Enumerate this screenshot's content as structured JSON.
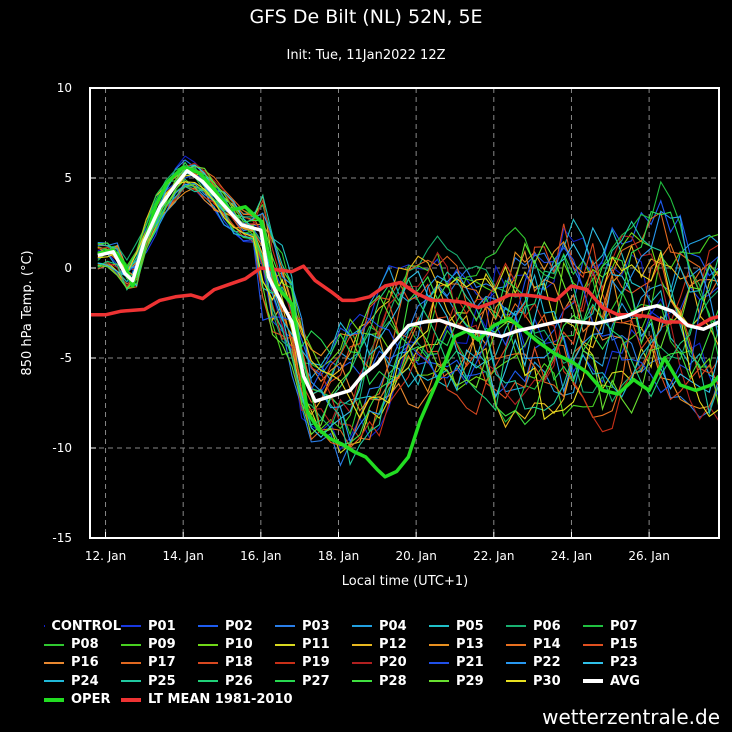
{
  "header": {
    "title": "GFS De Bilt (NL) 52N, 5E",
    "subtitle": "Init: Tue, 11Jan2022 12Z"
  },
  "watermark": "wetterzentrale.de",
  "chart_data": {
    "type": "line",
    "title": "GFS De Bilt (NL) 52N, 5E",
    "xlabel": "Local time (UTC+1)",
    "ylabel": "850 hPa Temp. (°C)",
    "xlim": [
      11.6,
      27.8
    ],
    "ylim": [
      -15,
      10
    ],
    "x_ticks": [
      {
        "v": 12,
        "label": "12. Jan"
      },
      {
        "v": 14,
        "label": "14. Jan"
      },
      {
        "v": 16,
        "label": "16. Jan"
      },
      {
        "v": 18,
        "label": "18. Jan"
      },
      {
        "v": 20,
        "label": "20. Jan"
      },
      {
        "v": 22,
        "label": "22. Jan"
      },
      {
        "v": 24,
        "label": "24. Jan"
      },
      {
        "v": 26,
        "label": "26. Jan"
      }
    ],
    "y_ticks": [
      -15,
      -10,
      -5,
      0,
      5,
      10
    ],
    "grid": true,
    "oper": {
      "name": "OPER",
      "color": "#22dd22",
      "x": [
        11.8,
        12.2,
        12.5,
        12.7,
        13,
        13.3,
        13.6,
        14,
        14.4,
        14.8,
        15.2,
        15.6,
        16,
        16.4,
        16.8,
        17.2,
        17.5,
        17.8,
        18.1,
        18.4,
        18.7,
        19,
        19.2,
        19.5,
        19.8,
        20.1,
        20.4,
        20.7,
        21,
        21.3,
        21.6,
        22,
        22.4,
        22.8,
        23.2,
        23.6,
        24,
        24.4,
        24.8,
        25.2,
        25.6,
        26,
        26.4,
        26.8,
        27.2,
        27.6,
        27.8
      ],
      "y": [
        0.8,
        1,
        0.2,
        -1,
        1.5,
        3.5,
        4.8,
        5.6,
        5.3,
        4.4,
        3.2,
        3.4,
        2.6,
        -1,
        -2,
        -8,
        -9,
        -9.5,
        -9.8,
        -10.2,
        -10.5,
        -11.2,
        -11.6,
        -11.3,
        -10.5,
        -8.5,
        -7,
        -5.5,
        -3.8,
        -3.5,
        -4,
        -3.2,
        -2.8,
        -3.5,
        -4.2,
        -4.8,
        -5.2,
        -5.8,
        -6.8,
        -7,
        -6.2,
        -6.8,
        -5,
        -6.5,
        -6.8,
        -6.5,
        -6
      ]
    },
    "avg": {
      "name": "AVG",
      "color": "#ffffff",
      "x": [
        11.8,
        12.2,
        12.5,
        12.7,
        13,
        13.4,
        13.8,
        14.1,
        14.5,
        15,
        15.5,
        16,
        16.2,
        16.5,
        16.8,
        17.1,
        17.4,
        17.7,
        18,
        18.3,
        18.6,
        19,
        19.4,
        19.8,
        20.2,
        20.6,
        21,
        21.4,
        21.8,
        22.2,
        22.6,
        23,
        23.4,
        23.8,
        24.2,
        24.6,
        25,
        25.4,
        25.8,
        26.2,
        26.6,
        27,
        27.4,
        27.8
      ],
      "y": [
        0.7,
        0.9,
        -0.3,
        -0.7,
        1.5,
        3.4,
        4.6,
        5.4,
        4.8,
        3.6,
        2.4,
        2.1,
        -0.5,
        -1.8,
        -3,
        -6,
        -7.4,
        -7.2,
        -7,
        -6.8,
        -6,
        -5.3,
        -4.2,
        -3.2,
        -3,
        -2.9,
        -3.2,
        -3.5,
        -3.6,
        -3.8,
        -3.5,
        -3.3,
        -3.1,
        -2.9,
        -3,
        -3.1,
        -2.9,
        -2.7,
        -2.3,
        -2.1,
        -2.4,
        -3.2,
        -3.4,
        -3
      ]
    },
    "lt_mean": {
      "name": "LT MEAN 1981-2010",
      "color": "#ee3333",
      "x": [
        11.6,
        12,
        12.4,
        13,
        13.4,
        13.8,
        14.2,
        14.5,
        14.8,
        15.2,
        15.6,
        16,
        16.4,
        16.8,
        17.1,
        17.4,
        17.8,
        18.1,
        18.4,
        18.8,
        19.2,
        19.6,
        20,
        20.4,
        20.8,
        21.2,
        21.6,
        22,
        22.4,
        22.8,
        23.2,
        23.6,
        24,
        24.4,
        24.8,
        25.2,
        25.6,
        26,
        26.4,
        26.8,
        27.2,
        27.6,
        27.8
      ],
      "y": [
        -2.6,
        -2.6,
        -2.4,
        -2.3,
        -1.8,
        -1.6,
        -1.5,
        -1.7,
        -1.2,
        -0.9,
        -0.6,
        0,
        -0.1,
        -0.2,
        0.1,
        -0.7,
        -1.3,
        -1.8,
        -1.8,
        -1.6,
        -1,
        -0.8,
        -1.4,
        -1.8,
        -1.8,
        -1.9,
        -2.2,
        -1.9,
        -1.5,
        -1.5,
        -1.6,
        -1.8,
        -1,
        -1.2,
        -2.2,
        -2.6,
        -2.6,
        -2.7,
        -3,
        -3,
        -3.3,
        -2.8,
        -2.7
      ]
    },
    "members": [
      {
        "name": "CONTROL",
        "color": "#1020c8"
      },
      {
        "name": "P01",
        "color": "#1838e0"
      },
      {
        "name": "P02",
        "color": "#1e5cf0"
      },
      {
        "name": "P03",
        "color": "#2a7ee8"
      },
      {
        "name": "P04",
        "color": "#22a0e0"
      },
      {
        "name": "P05",
        "color": "#20c0c8"
      },
      {
        "name": "P06",
        "color": "#18b070"
      },
      {
        "name": "P07",
        "color": "#20c040"
      },
      {
        "name": "P08",
        "color": "#30c830"
      },
      {
        "name": "P09",
        "color": "#48d020"
      },
      {
        "name": "P10",
        "color": "#70d818"
      },
      {
        "name": "P11",
        "color": "#d8d820"
      },
      {
        "name": "P12",
        "color": "#e8b820"
      },
      {
        "name": "P13",
        "color": "#e89020"
      },
      {
        "name": "P14",
        "color": "#e87020"
      },
      {
        "name": "P15",
        "color": "#e05020"
      },
      {
        "name": "P16",
        "color": "#e88830"
      },
      {
        "name": "P17",
        "color": "#e06820"
      },
      {
        "name": "P18",
        "color": "#d84820"
      },
      {
        "name": "P19",
        "color": "#c83018"
      },
      {
        "name": "P20",
        "color": "#b02020"
      },
      {
        "name": "P21",
        "color": "#2050e8"
      },
      {
        "name": "P22",
        "color": "#2898f0"
      },
      {
        "name": "P23",
        "color": "#30c0e8"
      },
      {
        "name": "P24",
        "color": "#20b8d8"
      },
      {
        "name": "P25",
        "color": "#20c8a0"
      },
      {
        "name": "P26",
        "color": "#20d078"
      },
      {
        "name": "P27",
        "color": "#28d850"
      },
      {
        "name": "P28",
        "color": "#40e040"
      },
      {
        "name": "P29",
        "color": "#68e030"
      },
      {
        "name": "P30",
        "color": "#e8e020"
      }
    ]
  }
}
